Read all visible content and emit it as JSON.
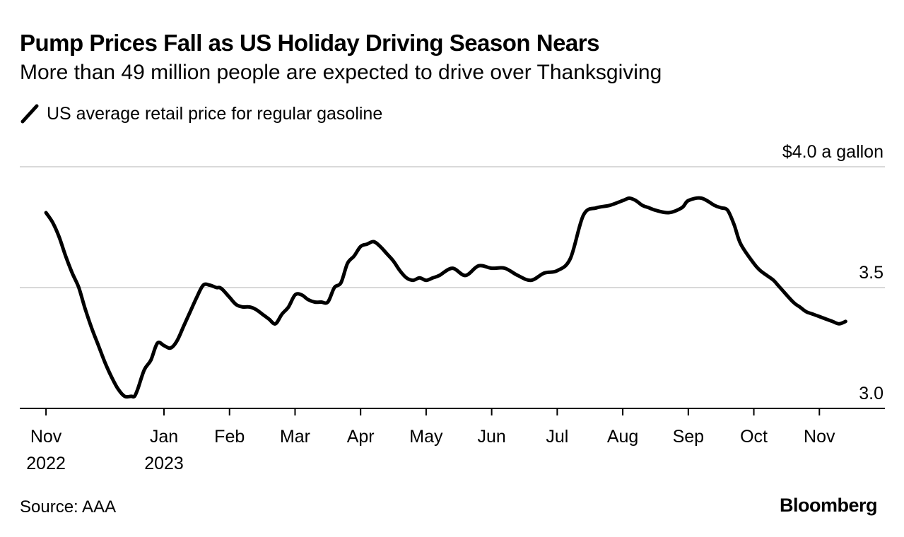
{
  "header": {
    "title": "Pump Prices Fall as US Holiday Driving Season Nears",
    "subtitle": "More than 49 million people are expected to drive over Thanksgiving"
  },
  "legend": {
    "label": "US average retail price for regular gasoline"
  },
  "footer": {
    "source": "Source: AAA",
    "brand": "Bloomberg"
  },
  "colors": {
    "line": "#000000",
    "grid": "#d9d9d9",
    "axis": "#000000"
  },
  "chart_data": {
    "type": "line",
    "title": "Pump Prices Fall as US Holiday Driving Season Nears",
    "subtitle": "More than 49 million people are expected to drive over Thanksgiving",
    "xlabel": "",
    "ylabel": "$ a gallon",
    "ylim": [
      3.0,
      4.0
    ],
    "xlim": [
      -0.4,
      12.8
    ],
    "grid": true,
    "legend_position": "top-left",
    "y_ticks": [
      {
        "value": 4.0,
        "label": "$4.0 a gallon"
      },
      {
        "value": 3.5,
        "label": "3.5"
      },
      {
        "value": 3.0,
        "label": "3.0"
      }
    ],
    "x_ticks": [
      {
        "value": 0,
        "label": "Nov",
        "sublabel": "2022"
      },
      {
        "value": 1.8,
        "label": "Jan",
        "sublabel": "2023"
      },
      {
        "value": 2.8,
        "label": "Feb",
        "sublabel": ""
      },
      {
        "value": 3.8,
        "label": "Mar",
        "sublabel": ""
      },
      {
        "value": 4.8,
        "label": "Apr",
        "sublabel": ""
      },
      {
        "value": 5.8,
        "label": "May",
        "sublabel": ""
      },
      {
        "value": 6.8,
        "label": "Jun",
        "sublabel": ""
      },
      {
        "value": 7.8,
        "label": "Jul",
        "sublabel": ""
      },
      {
        "value": 8.8,
        "label": "Aug",
        "sublabel": ""
      },
      {
        "value": 9.8,
        "label": "Sep",
        "sublabel": ""
      },
      {
        "value": 10.8,
        "label": "Oct",
        "sublabel": ""
      },
      {
        "value": 11.8,
        "label": "Nov",
        "sublabel": ""
      }
    ],
    "series": [
      {
        "name": "US average retail price for regular gasoline",
        "x": [
          0,
          0.1,
          0.2,
          0.3,
          0.4,
          0.5,
          0.6,
          0.7,
          0.8,
          0.9,
          1.0,
          1.1,
          1.2,
          1.3,
          1.35,
          1.4,
          1.5,
          1.6,
          1.7,
          1.8,
          1.9,
          2.0,
          2.1,
          2.2,
          2.3,
          2.4,
          2.5,
          2.6,
          2.65,
          2.7,
          2.8,
          2.9,
          3.0,
          3.1,
          3.2,
          3.3,
          3.4,
          3.5,
          3.6,
          3.7,
          3.8,
          3.9,
          4.0,
          4.1,
          4.2,
          4.3,
          4.4,
          4.5,
          4.6,
          4.7,
          4.8,
          4.9,
          5.0,
          5.1,
          5.2,
          5.3,
          5.4,
          5.5,
          5.6,
          5.7,
          5.8,
          5.9,
          6.0,
          6.2,
          6.4,
          6.6,
          6.8,
          7.0,
          7.2,
          7.4,
          7.6,
          7.8,
          8.0,
          8.2,
          8.4,
          8.6,
          8.8,
          8.9,
          9.0,
          9.1,
          9.2,
          9.3,
          9.5,
          9.7,
          9.8,
          10.0,
          10.2,
          10.3,
          10.4,
          10.5,
          10.6,
          10.8,
          10.9,
          11.0,
          11.1,
          11.2,
          11.4,
          11.5,
          11.6,
          11.7,
          11.8,
          11.9,
          12.0,
          12.1,
          12.2
        ],
        "values": [
          3.81,
          3.77,
          3.71,
          3.63,
          3.56,
          3.5,
          3.41,
          3.33,
          3.26,
          3.19,
          3.13,
          3.08,
          3.05,
          3.05,
          3.05,
          3.08,
          3.16,
          3.2,
          3.27,
          3.26,
          3.25,
          3.28,
          3.34,
          3.4,
          3.46,
          3.51,
          3.51,
          3.5,
          3.5,
          3.49,
          3.46,
          3.43,
          3.42,
          3.42,
          3.41,
          3.39,
          3.37,
          3.35,
          3.39,
          3.42,
          3.47,
          3.47,
          3.45,
          3.44,
          3.44,
          3.44,
          3.5,
          3.52,
          3.6,
          3.63,
          3.67,
          3.68,
          3.69,
          3.67,
          3.64,
          3.61,
          3.57,
          3.54,
          3.53,
          3.54,
          3.53,
          3.54,
          3.55,
          3.58,
          3.55,
          3.59,
          3.58,
          3.58,
          3.55,
          3.53,
          3.56,
          3.57,
          3.62,
          3.8,
          3.83,
          3.84,
          3.86,
          3.87,
          3.86,
          3.84,
          3.83,
          3.82,
          3.81,
          3.83,
          3.86,
          3.87,
          3.84,
          3.83,
          3.82,
          3.76,
          3.68,
          3.6,
          3.57,
          3.55,
          3.53,
          3.5,
          3.44,
          3.42,
          3.4,
          3.39,
          3.38,
          3.37,
          3.36,
          3.35,
          3.36
        ]
      }
    ]
  }
}
